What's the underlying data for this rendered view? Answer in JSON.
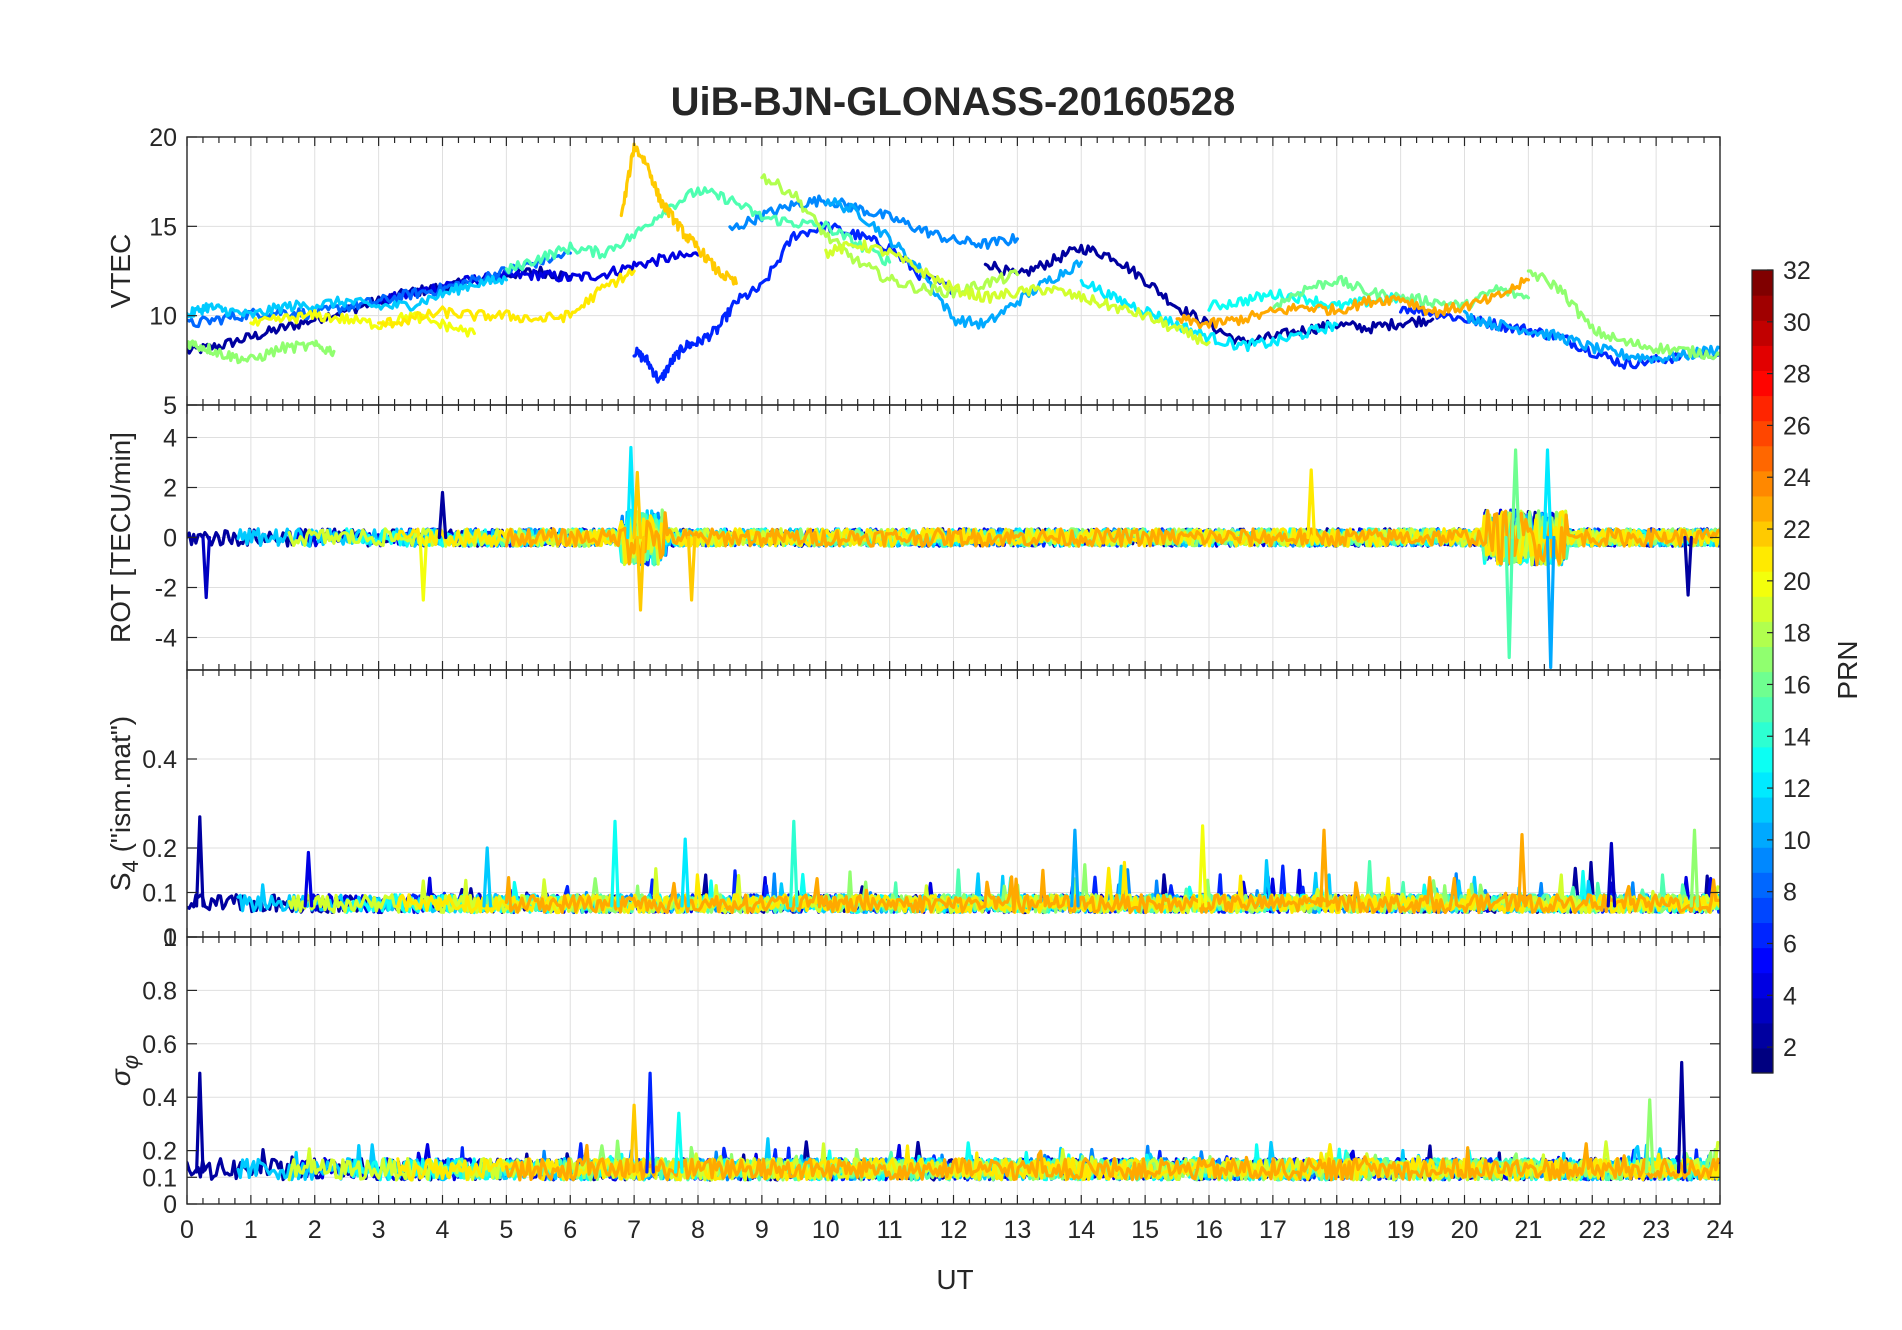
{
  "chart_data": {
    "title": "UiB-BJN-GLONASS-20160528",
    "type": "line",
    "xlabel": "UT",
    "xlim": [
      0,
      24
    ],
    "xticks": [
      "0",
      "1",
      "2",
      "3",
      "4",
      "5",
      "6",
      "7",
      "8",
      "9",
      "10",
      "11",
      "12",
      "13",
      "14",
      "15",
      "16",
      "17",
      "18",
      "19",
      "20",
      "21",
      "22",
      "23",
      "24"
    ],
    "colorbar": {
      "label": "PRN",
      "range": [
        1,
        32
      ],
      "ticks": [
        "2",
        "4",
        "6",
        "8",
        "10",
        "12",
        "14",
        "16",
        "18",
        "20",
        "22",
        "24",
        "26",
        "28",
        "30",
        "32"
      ],
      "colormap": "jet"
    },
    "panels": [
      {
        "name": "vtec",
        "ylabel": "VTEC",
        "ylim": [
          5,
          20
        ],
        "yticks": [
          "5",
          "10",
          "15",
          "20"
        ],
        "series": [
          {
            "prn": 2,
            "x": [
              0,
              0.5,
              1,
              1.5,
              2,
              2.5,
              3,
              3.5,
              4,
              4.5,
              5,
              5.5,
              6
            ],
            "y": [
              8,
              8.3,
              8.8,
              9.3,
              9.8,
              10.3,
              10.8,
              11.3,
              11.6,
              11.9,
              12.3,
              12.5,
              12.2
            ]
          },
          {
            "prn": 4,
            "x": [
              3,
              3.5,
              4,
              4.5,
              5,
              5.5,
              6,
              6.5,
              7,
              7.5,
              8
            ],
            "y": [
              10.8,
              11.2,
              11.7,
              12,
              12.2,
              12.3,
              12.1,
              12.3,
              12.8,
              13.2,
              13.4
            ]
          },
          {
            "prn": 2,
            "x": [
              12.5,
              13,
              13.5,
              14,
              14.5,
              15,
              15.5,
              16,
              16.5,
              17,
              17.5,
              18,
              18.5,
              19,
              19.5
            ],
            "y": [
              13,
              12.2,
              13,
              13.8,
              13.3,
              12,
              10.5,
              9.5,
              8.5,
              8.8,
              9.2,
              9.5,
              9.3,
              9.6,
              9.8
            ]
          },
          {
            "prn": 6,
            "x": [
              7,
              7.2,
              7.4,
              7.6,
              7.8,
              8,
              8.3,
              8.6,
              9,
              9.5,
              10,
              10.5,
              11,
              11.5,
              12
            ],
            "y": [
              8,
              7.5,
              6.3,
              7.5,
              8.3,
              8.5,
              9.2,
              10.8,
              11.6,
              14.5,
              15,
              14.5,
              13.8,
              12.2,
              11.5
            ]
          },
          {
            "prn": 6,
            "x": [
              19,
              19.5,
              20,
              20.5,
              21,
              21.5,
              22,
              22.5,
              23,
              23.5,
              24
            ],
            "y": [
              10.5,
              10.2,
              9.8,
              9.5,
              9.2,
              8.8,
              8,
              7.3,
              7.5,
              7.8,
              7.9
            ]
          },
          {
            "prn": 8,
            "x": [
              0,
              0.5,
              1,
              1.5,
              2,
              2.5,
              3,
              3.5,
              4,
              4.5,
              5,
              5.5,
              6
            ],
            "y": [
              9.5,
              9.8,
              10.1,
              10.2,
              10.1,
              10.5,
              10.8,
              11.2,
              11.5,
              12,
              12.5,
              13,
              13.5
            ]
          },
          {
            "prn": 9,
            "x": [
              8.5,
              9,
              9.5,
              10,
              10.5,
              11,
              11.5,
              12,
              12.5,
              13
            ],
            "y": [
              14.8,
              15.6,
              16.2,
              16.5,
              16,
              15.5,
              14.8,
              14.2,
              14,
              14.3
            ]
          },
          {
            "prn": 10,
            "x": [
              10,
              10.5,
              11,
              11.5,
              12,
              12.5,
              13,
              13.5,
              14
            ],
            "y": [
              16.5,
              15.8,
              14.3,
              12.5,
              9.8,
              9.5,
              10.8,
              12,
              13
            ]
          },
          {
            "prn": 10,
            "x": [
              20,
              20.5,
              21,
              21.5,
              22,
              22.5,
              23,
              23.5,
              24
            ],
            "y": [
              10,
              9.5,
              9.2,
              8.8,
              8.2,
              7.8,
              7.6,
              7.8,
              8.2
            ]
          },
          {
            "prn": 11,
            "x": [
              0,
              0.3,
              0.6,
              1,
              1.5,
              2,
              2.5,
              3,
              3.5,
              4,
              4.5,
              5
            ],
            "y": [
              10,
              10.5,
              10.3,
              10,
              10.5,
              10.6,
              10.8,
              10.5,
              10.6,
              11.2,
              11.8,
              12
            ]
          },
          {
            "prn": 12,
            "x": [
              14,
              14.5,
              15,
              15.5,
              16,
              16.5,
              17,
              17.5,
              18
            ],
            "y": [
              12,
              11,
              10.3,
              9.5,
              8.8,
              8.3,
              8.5,
              9,
              9.5
            ]
          },
          {
            "prn": 13,
            "x": [
              16,
              16.5,
              17,
              17.5,
              18,
              18.5,
              19
            ],
            "y": [
              10.5,
              10.8,
              11.2,
              11,
              10.5,
              10.8,
              11
            ]
          },
          {
            "prn": 15,
            "x": [
              5,
              5.5,
              6,
              6.5,
              7,
              7.5,
              8,
              8.5,
              9,
              9.5,
              10,
              10.5,
              11
            ],
            "y": [
              12.5,
              13.2,
              13.8,
              13.5,
              14.5,
              16,
              17,
              16.5,
              15.5,
              15.2,
              15,
              14,
              13
            ]
          },
          {
            "prn": 16,
            "x": [
              17,
              17.5,
              18,
              18.5,
              19,
              19.5,
              20,
              20.5,
              21
            ],
            "y": [
              10.5,
              11.5,
              12,
              11.3,
              11,
              10.8,
              10.5,
              11.5,
              11
            ]
          },
          {
            "prn": 17,
            "x": [
              0,
              0.3,
              0.6,
              1,
              1.5,
              2,
              2.3
            ],
            "y": [
              8.5,
              8.2,
              7.8,
              7.5,
              8.2,
              8.3,
              8
            ]
          },
          {
            "prn": 18,
            "x": [
              9,
              9.5,
              10,
              10.5,
              11,
              11.5,
              12,
              12.5,
              13
            ],
            "y": [
              17.8,
              16.8,
              14.5,
              13,
              12,
              11.5,
              11.3,
              11.8,
              12.3
            ]
          },
          {
            "prn": 17,
            "x": [
              21,
              21.5,
              22,
              22.5,
              23,
              23.5,
              24
            ],
            "y": [
              12.5,
              11.5,
              9.2,
              8.5,
              8.2,
              8,
              7.8
            ]
          },
          {
            "prn": 19,
            "x": [
              10,
              10.5,
              11,
              11.5,
              12,
              12.5,
              13,
              13.5,
              14,
              14.5,
              15,
              15.5,
              16
            ],
            "y": [
              13.5,
              14,
              13.5,
              12.5,
              11.5,
              11,
              11.3,
              11.5,
              11,
              10.5,
              10,
              9.2,
              8.5
            ]
          },
          {
            "prn": 20,
            "x": [
              1,
              1.5,
              2,
              2.5,
              3,
              3.5,
              4,
              4.5
            ],
            "y": [
              9.5,
              9.8,
              10,
              9.8,
              9.5,
              10,
              9.5,
              9
            ]
          },
          {
            "prn": 21,
            "x": [
              3,
              3.5,
              4,
              4.5,
              5,
              5.5,
              6,
              6.5,
              7
            ],
            "y": [
              9.5,
              9.8,
              10.2,
              10,
              10,
              9.8,
              10,
              11.5,
              12.5
            ]
          },
          {
            "prn": 22,
            "x": [
              6.8,
              7,
              7.2,
              7.4,
              7.6,
              7.8,
              8,
              8.3,
              8.6
            ],
            "y": [
              15.5,
              19.5,
              18.5,
              16.5,
              15.5,
              14.5,
              13.8,
              12.5,
              11.8
            ]
          },
          {
            "prn": 23,
            "x": [
              15.5,
              16,
              16.5,
              17,
              17.5,
              18,
              18.5,
              19,
              19.5,
              20,
              20.5,
              21
            ],
            "y": [
              9.8,
              9.5,
              9.8,
              10.2,
              10.5,
              10.3,
              10.8,
              11,
              10.2,
              10.5,
              11,
              12
            ]
          }
        ]
      },
      {
        "name": "rot",
        "ylabel": "ROT [TECU/min]",
        "ylim": [
          -5.3,
          5.3
        ],
        "yticks": [
          "-4",
          "-2",
          "0",
          "2",
          "4"
        ],
        "note": "near-zero ROT noise for all PRNs with bursts around 7 UT and 20.5-21.5 UT",
        "spikes": [
          {
            "prn": 3,
            "x": 0.3,
            "y": -2.4
          },
          {
            "prn": 20,
            "x": 3.7,
            "y": -2.5
          },
          {
            "prn": 2,
            "x": 4,
            "y": 1.8
          },
          {
            "prn": 12,
            "x": 6.95,
            "y": 3.6
          },
          {
            "prn": 22,
            "x": 7.05,
            "y": 2.6
          },
          {
            "prn": 22,
            "x": 7.1,
            "y": -2.9
          },
          {
            "prn": 22,
            "x": 7.9,
            "y": -2.5
          },
          {
            "prn": 21,
            "x": 17.6,
            "y": 2.7
          },
          {
            "prn": 15,
            "x": 20.7,
            "y": -4.8
          },
          {
            "prn": 16,
            "x": 20.8,
            "y": 3.5
          },
          {
            "prn": 10,
            "x": 21.35,
            "y": -5.2
          },
          {
            "prn": 12,
            "x": 21.3,
            "y": 3.5
          },
          {
            "prn": 2,
            "x": 23.5,
            "y": -2.3
          }
        ]
      },
      {
        "name": "s4",
        "ylabel": "S4 (\"ism.mat\")",
        "ylim": [
          0,
          0.6
        ],
        "yticks": [
          "0",
          "0.1",
          "0.2",
          "0.4"
        ],
        "note": "S4 values mostly 0.05-0.1 with peaks up to 0.27",
        "peaks": [
          {
            "prn": 2,
            "x": 0.2,
            "y": 0.27
          },
          {
            "prn": 4,
            "x": 1.9,
            "y": 0.19
          },
          {
            "prn": 11,
            "x": 4.7,
            "y": 0.2
          },
          {
            "prn": 13,
            "x": 6.7,
            "y": 0.26
          },
          {
            "prn": 12,
            "x": 7.8,
            "y": 0.22
          },
          {
            "prn": 14,
            "x": 9.5,
            "y": 0.26
          },
          {
            "prn": 10,
            "x": 13.9,
            "y": 0.24
          },
          {
            "prn": 20,
            "x": 15.9,
            "y": 0.25
          },
          {
            "prn": 23,
            "x": 17.8,
            "y": 0.24
          },
          {
            "prn": 23,
            "x": 20.9,
            "y": 0.23
          },
          {
            "prn": 3,
            "x": 22.3,
            "y": 0.21
          },
          {
            "prn": 17,
            "x": 23.6,
            "y": 0.24
          }
        ]
      },
      {
        "name": "sigma",
        "ylabel": "σφ",
        "ylim": [
          0,
          1
        ],
        "yticks": [
          "0",
          "0.1",
          "0.2",
          "0.4",
          "0.6",
          "0.8",
          "1"
        ],
        "note": "sigma phi mostly 0.08-0.25 with peaks up to 0.53",
        "peaks": [
          {
            "prn": 2,
            "x": 0.2,
            "y": 0.49
          },
          {
            "prn": 22,
            "x": 7,
            "y": 0.37
          },
          {
            "prn": 6,
            "x": 7.25,
            "y": 0.49
          },
          {
            "prn": 13,
            "x": 7.7,
            "y": 0.34
          },
          {
            "prn": 2,
            "x": 23.4,
            "y": 0.53
          },
          {
            "prn": 17,
            "x": 22.9,
            "y": 0.39
          }
        ]
      }
    ]
  }
}
